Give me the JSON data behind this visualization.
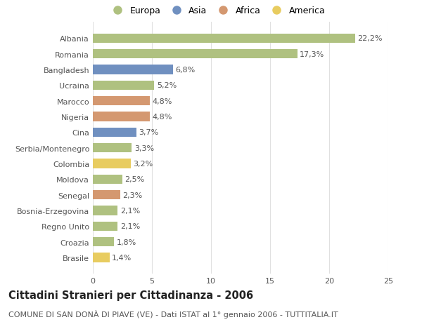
{
  "countries": [
    "Albania",
    "Romania",
    "Bangladesh",
    "Ucraina",
    "Marocco",
    "Nigeria",
    "Cina",
    "Serbia/Montenegro",
    "Colombia",
    "Moldova",
    "Senegal",
    "Bosnia-Erzegovina",
    "Regno Unito",
    "Croazia",
    "Brasile"
  ],
  "values": [
    22.2,
    17.3,
    6.8,
    5.2,
    4.8,
    4.8,
    3.7,
    3.3,
    3.2,
    2.5,
    2.3,
    2.1,
    2.1,
    1.8,
    1.4
  ],
  "labels": [
    "22,2%",
    "17,3%",
    "6,8%",
    "5,2%",
    "4,8%",
    "4,8%",
    "3,7%",
    "3,3%",
    "3,2%",
    "2,5%",
    "2,3%",
    "2,1%",
    "2,1%",
    "1,8%",
    "1,4%"
  ],
  "continents": [
    "Europa",
    "Europa",
    "Asia",
    "Europa",
    "Africa",
    "Africa",
    "Asia",
    "Europa",
    "America",
    "Europa",
    "Africa",
    "Europa",
    "Europa",
    "Europa",
    "America"
  ],
  "colors": {
    "Europa": "#afc180",
    "Asia": "#7090c0",
    "Africa": "#d49870",
    "America": "#e8cc60"
  },
  "legend_order": [
    "Europa",
    "Asia",
    "Africa",
    "America"
  ],
  "legend_colors": [
    "#afc180",
    "#7090c0",
    "#d49870",
    "#e8cc60"
  ],
  "title": "Cittadini Stranieri per Cittadinanza - 2006",
  "subtitle": "COMUNE DI SAN DONÀ DI PIAVE (VE) - Dati ISTAT al 1° gennaio 2006 - TUTTITALIA.IT",
  "xlim": [
    0,
    25
  ],
  "xticks": [
    0,
    5,
    10,
    15,
    20,
    25
  ],
  "background_color": "#ffffff",
  "grid_color": "#e0e0e0",
  "bar_height": 0.6,
  "label_fontsize": 8,
  "tick_fontsize": 8,
  "title_fontsize": 10.5,
  "subtitle_fontsize": 8
}
